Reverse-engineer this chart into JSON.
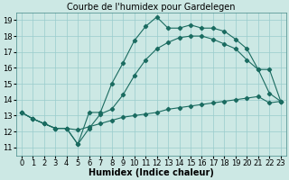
{
  "title": "Courbe de l'humidex pour Gardelegen",
  "xlabel": "Humidex (Indice chaleur)",
  "bg_color": "#cce8e4",
  "line_color": "#1a6b60",
  "grid_color": "#99cccc",
  "xlim": [
    -0.5,
    23.5
  ],
  "ylim": [
    10.5,
    19.5
  ],
  "xticks": [
    0,
    1,
    2,
    3,
    4,
    5,
    6,
    7,
    8,
    9,
    10,
    11,
    12,
    13,
    14,
    15,
    16,
    17,
    18,
    19,
    20,
    21,
    22,
    23
  ],
  "yticks": [
    11,
    12,
    13,
    14,
    15,
    16,
    17,
    18,
    19
  ],
  "line1_x": [
    0,
    1,
    2,
    3,
    4,
    5,
    6,
    7,
    8,
    9,
    10,
    11,
    12,
    13,
    14,
    15,
    16,
    17,
    18,
    19,
    20,
    21,
    22,
    23
  ],
  "line1_y": [
    13.2,
    12.8,
    12.5,
    12.2,
    12.2,
    11.2,
    13.2,
    13.2,
    15.0,
    16.3,
    17.7,
    18.6,
    19.2,
    18.5,
    18.5,
    18.7,
    18.5,
    18.5,
    18.3,
    17.8,
    17.2,
    15.9,
    14.4,
    13.9
  ],
  "line2_x": [
    0,
    1,
    2,
    3,
    4,
    5,
    6,
    7,
    8,
    9,
    10,
    11,
    12,
    13,
    14,
    15,
    16,
    17,
    18,
    19,
    20,
    21,
    22,
    23
  ],
  "line2_y": [
    13.2,
    12.8,
    12.5,
    12.2,
    12.2,
    11.2,
    12.2,
    13.1,
    13.4,
    14.3,
    15.5,
    16.5,
    17.2,
    17.6,
    17.9,
    18.0,
    18.0,
    17.8,
    17.5,
    17.2,
    16.5,
    15.9,
    15.9,
    13.9
  ],
  "line3_x": [
    0,
    1,
    2,
    3,
    4,
    5,
    6,
    7,
    8,
    9,
    10,
    11,
    12,
    13,
    14,
    15,
    16,
    17,
    18,
    19,
    20,
    21,
    22,
    23
  ],
  "line3_y": [
    13.2,
    12.8,
    12.5,
    12.2,
    12.2,
    12.1,
    12.3,
    12.5,
    12.7,
    12.9,
    13.0,
    13.1,
    13.2,
    13.4,
    13.5,
    13.6,
    13.7,
    13.8,
    13.9,
    14.0,
    14.1,
    14.2,
    13.8,
    13.9
  ],
  "title_fontsize": 7,
  "axis_fontsize": 7,
  "tick_fontsize": 6
}
